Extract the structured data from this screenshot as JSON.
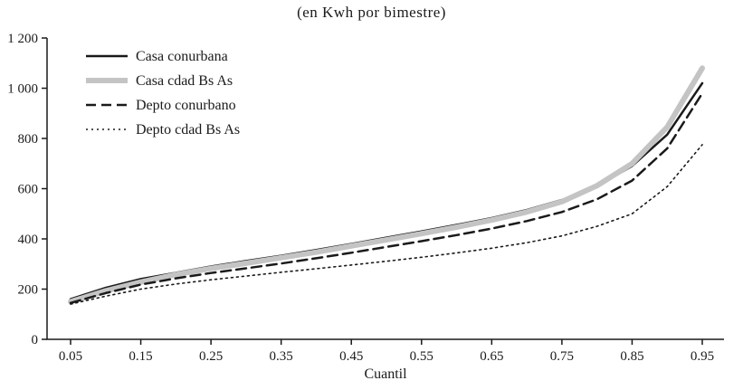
{
  "title": "(en Kwh por bimestre)",
  "chart_data": {
    "type": "line",
    "title": "(en Kwh por bimestre)",
    "xlabel": "Cuantil",
    "ylabel": "",
    "xlim": [
      0.05,
      0.95
    ],
    "ylim": [
      0,
      1200
    ],
    "grid": false,
    "legend_position": "top-left",
    "axis_color": "#1a1a1a",
    "xtick_values": [
      0.05,
      0.15,
      0.25,
      0.35,
      0.45,
      0.55,
      0.65,
      0.75,
      0.85,
      0.95
    ],
    "xtick_labels": [
      "0.05",
      "0.15",
      "0.25",
      "0.35",
      "0.45",
      "0.55",
      "0.65",
      "0.75",
      "0.85",
      "0.95"
    ],
    "ytick_values": [
      0,
      200,
      400,
      600,
      800,
      1000,
      1200
    ],
    "ytick_labels": [
      "0",
      "200",
      "400",
      "600",
      "800",
      "1 000",
      "1 200"
    ],
    "x": [
      0.05,
      0.1,
      0.15,
      0.2,
      0.25,
      0.3,
      0.35,
      0.4,
      0.45,
      0.5,
      0.55,
      0.6,
      0.65,
      0.7,
      0.75,
      0.8,
      0.85,
      0.9,
      0.95
    ],
    "series": [
      {
        "name": "Casa conurbana",
        "style": "solid",
        "color": "#1a1a1a",
        "width": 2.5,
        "values": [
          160,
          205,
          240,
          265,
          290,
          312,
          333,
          356,
          380,
          405,
          430,
          456,
          483,
          515,
          555,
          610,
          690,
          815,
          1020
        ]
      },
      {
        "name": "Casa cdad Bs As",
        "style": "solid",
        "color": "#c4c4c4",
        "width": 6,
        "values": [
          150,
          193,
          228,
          258,
          282,
          303,
          325,
          347,
          372,
          396,
          421,
          447,
          475,
          507,
          548,
          612,
          700,
          845,
          1080
        ]
      },
      {
        "name": "Depto conurbano",
        "style": "dashed",
        "color": "#1a1a1a",
        "width": 2.5,
        "values": [
          145,
          184,
          218,
          243,
          264,
          283,
          302,
          323,
          345,
          368,
          391,
          415,
          441,
          471,
          507,
          558,
          632,
          760,
          980
        ]
      },
      {
        "name": "Depto cdad Bs As",
        "style": "dotted",
        "color": "#1a1a1a",
        "width": 1.6,
        "values": [
          140,
          172,
          200,
          220,
          237,
          252,
          267,
          281,
          296,
          311,
          327,
          344,
          363,
          385,
          412,
          450,
          500,
          608,
          775
        ]
      }
    ]
  }
}
